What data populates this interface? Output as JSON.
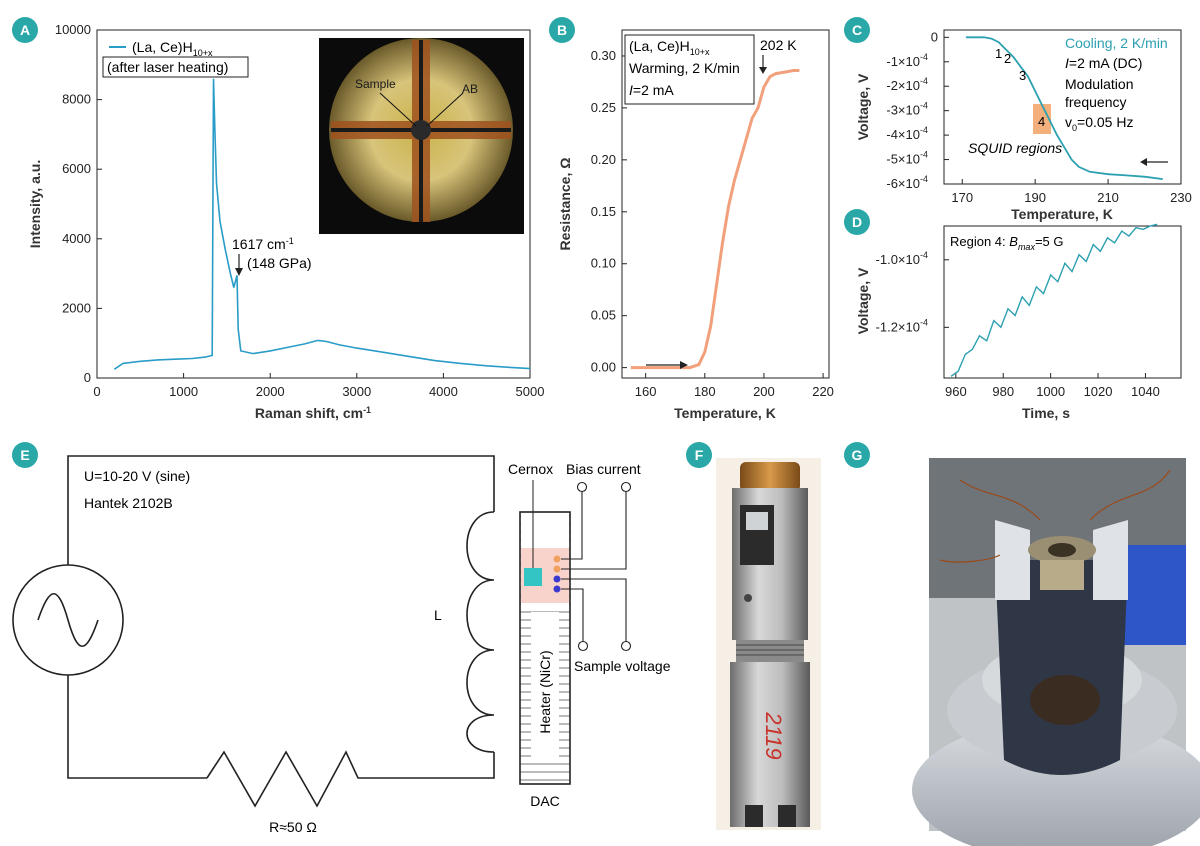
{
  "colors": {
    "badge": "#2aa8a8",
    "raman": "#2a9cc8",
    "resistance": "#f2a07c",
    "squid": "#2aa0b0",
    "region4": "#f4b07c"
  },
  "panels": {
    "A": "A",
    "B": "B",
    "C": "C",
    "D": "D",
    "E": "E",
    "F": "F",
    "G": "G"
  },
  "chart_data": [
    {
      "id": "A",
      "type": "line",
      "xlabel": "Raman shift, cm",
      "xlabel_sup": "-1",
      "ylabel": "Intensity, a.u.",
      "xlim": [
        0,
        5000
      ],
      "ylim": [
        0,
        10000
      ],
      "xticks": [
        "0",
        "1000",
        "2000",
        "3000",
        "4000",
        "5000"
      ],
      "yticks": [
        "0",
        "2000",
        "4000",
        "6000",
        "8000",
        "10000"
      ],
      "legend": {
        "line1": "(La, Ce)H",
        "line1_sub": "10+x",
        "line2": "(after laser heating)"
      },
      "annotation": {
        "line1": "1617 cm",
        "line1_sup": "-1",
        "line2": "(148 GPa)"
      },
      "inset_labels": [
        "Sample",
        "AB"
      ],
      "series": [
        {
          "x": [
            200,
            300,
            500,
            700,
            900,
            1100,
            1250,
            1330,
            1345,
            1360,
            1380,
            1420,
            1480,
            1540,
            1580,
            1600,
            1617,
            1630,
            1660,
            1800,
            2000,
            2200,
            2400,
            2550,
            2650,
            2800,
            3000,
            3300,
            3600,
            3900,
            4200,
            4500,
            4800,
            5000
          ],
          "values": [
            250,
            420,
            480,
            520,
            540,
            560,
            600,
            650,
            8600,
            7200,
            5600,
            4500,
            3700,
            3000,
            2600,
            2800,
            2950,
            1400,
            780,
            700,
            780,
            880,
            980,
            1080,
            1050,
            950,
            860,
            740,
            620,
            500,
            420,
            350,
            300,
            270
          ]
        }
      ]
    },
    {
      "id": "B",
      "type": "line",
      "xlabel": "Temperature, K",
      "ylabel": "Resistance, Ω",
      "xlim": [
        152,
        222
      ],
      "ylim": [
        -0.01,
        0.325
      ],
      "xticks": [
        "160",
        "180",
        "200",
        "220"
      ],
      "yticks": [
        "0.00",
        "0.05",
        "0.10",
        "0.15",
        "0.20",
        "0.25",
        "0.30"
      ],
      "legend": {
        "line1": "(La, Ce)H",
        "line1_sub": "10+x",
        "line2": "Warming, 2 K/min",
        "line3_italic": "I",
        "line3": "=2 mA"
      },
      "annotation": "202 K",
      "series": [
        {
          "x": [
            155,
            165,
            175,
            178,
            180,
            182,
            184,
            186,
            188,
            190,
            192,
            194,
            196,
            198,
            200,
            201,
            202,
            204,
            206,
            208,
            210,
            212
          ],
          "values": [
            0.0,
            0.0,
            0.0,
            0.003,
            0.015,
            0.04,
            0.08,
            0.12,
            0.155,
            0.18,
            0.2,
            0.22,
            0.24,
            0.25,
            0.27,
            0.275,
            0.28,
            0.283,
            0.284,
            0.285,
            0.286,
            0.286
          ]
        }
      ]
    },
    {
      "id": "C",
      "type": "line",
      "xlabel": "Temperature, K",
      "ylabel": "Voltage, V",
      "xlim": [
        165,
        230
      ],
      "ylim": [
        -0.0006,
        3e-05
      ],
      "xticks": [
        "170",
        "190",
        "210",
        "230"
      ],
      "yticks": [
        "0",
        "-1×10",
        "-2×10",
        "-3×10",
        "-4×10",
        "-5×10",
        "-6×10"
      ],
      "ytick_sup": "-4",
      "text": {
        "line1": "Cooling, 2 K/min",
        "line2_italic": "I",
        "line2": "=2 mA (DC)",
        "line3": "Modulation",
        "line4": "frequency",
        "line5": "v",
        "line5_sub": "0",
        "line5_rest": "=0.05 Hz"
      },
      "regions_label": "SQUID regions",
      "region_numbers": [
        "1",
        "2",
        "3",
        "4"
      ],
      "series": [
        {
          "x": [
            171,
            174,
            176,
            178,
            180,
            182,
            184,
            186,
            188,
            190,
            192,
            194,
            196,
            198,
            200,
            202,
            205,
            210,
            215,
            220,
            225
          ],
          "values": [
            0.0,
            0.0,
            0.0,
            -5e-06,
            -2e-05,
            -5e-05,
            -8e-05,
            -0.00012,
            -0.00016,
            -0.00022,
            -0.00028,
            -0.00034,
            -0.0004,
            -0.00045,
            -0.0005,
            -0.00053,
            -0.00055,
            -0.00056,
            -0.000565,
            -0.00057,
            -0.00058
          ]
        }
      ]
    },
    {
      "id": "D",
      "type": "line",
      "xlabel": "Time, s",
      "ylabel": "Voltage, V",
      "xlim": [
        955,
        1055
      ],
      "ylim": [
        -0.000135,
        -9e-05
      ],
      "xticks": [
        "960",
        "980",
        "1000",
        "1020",
        "1040"
      ],
      "yticks": [
        "-1.0×10",
        "-1.2×10"
      ],
      "ytick_sup": "-4",
      "text": {
        "prefix": "Region 4: ",
        "b": "B",
        "b_sub": "max",
        "suffix": "=5 G"
      },
      "series": [
        {
          "x": [
            958,
            961,
            964,
            967,
            970,
            973,
            976,
            979,
            982,
            985,
            988,
            991,
            994,
            997,
            1000,
            1003,
            1006,
            1009,
            1012,
            1015,
            1018,
            1021,
            1024,
            1027,
            1030,
            1033,
            1036,
            1039,
            1042,
            1045
          ],
          "values": [
            -0.0001345,
            -0.000133,
            -0.000128,
            -0.0001265,
            -0.0001225,
            -0.000124,
            -0.000118,
            -0.00012,
            -0.0001145,
            -0.0001165,
            -0.000111,
            -0.0001135,
            -0.000108,
            -0.00011,
            -0.0001045,
            -0.0001065,
            -0.000101,
            -0.0001035,
            -9.85e-05,
            -0.0001005,
            -9.55e-05,
            -9.75e-05,
            -9.35e-05,
            -9.5e-05,
            -9.15e-05,
            -9.3e-05,
            -9.05e-05,
            -9.1e-05,
            -9e-05,
            -8.95e-05
          ]
        }
      ]
    }
  ],
  "diagram_E": {
    "source_line1": "U=10-20 V (sine)",
    "source_line2": "Hantek 2102B",
    "inductor": "L",
    "resistor": "R≈50 Ω",
    "cernox": "Cernox",
    "bias": "Bias current",
    "sample_voltage": "Sample voltage",
    "heater": "Heater (NiCr)",
    "dac": "DAC"
  },
  "photo_F": {
    "marking": "2119"
  }
}
